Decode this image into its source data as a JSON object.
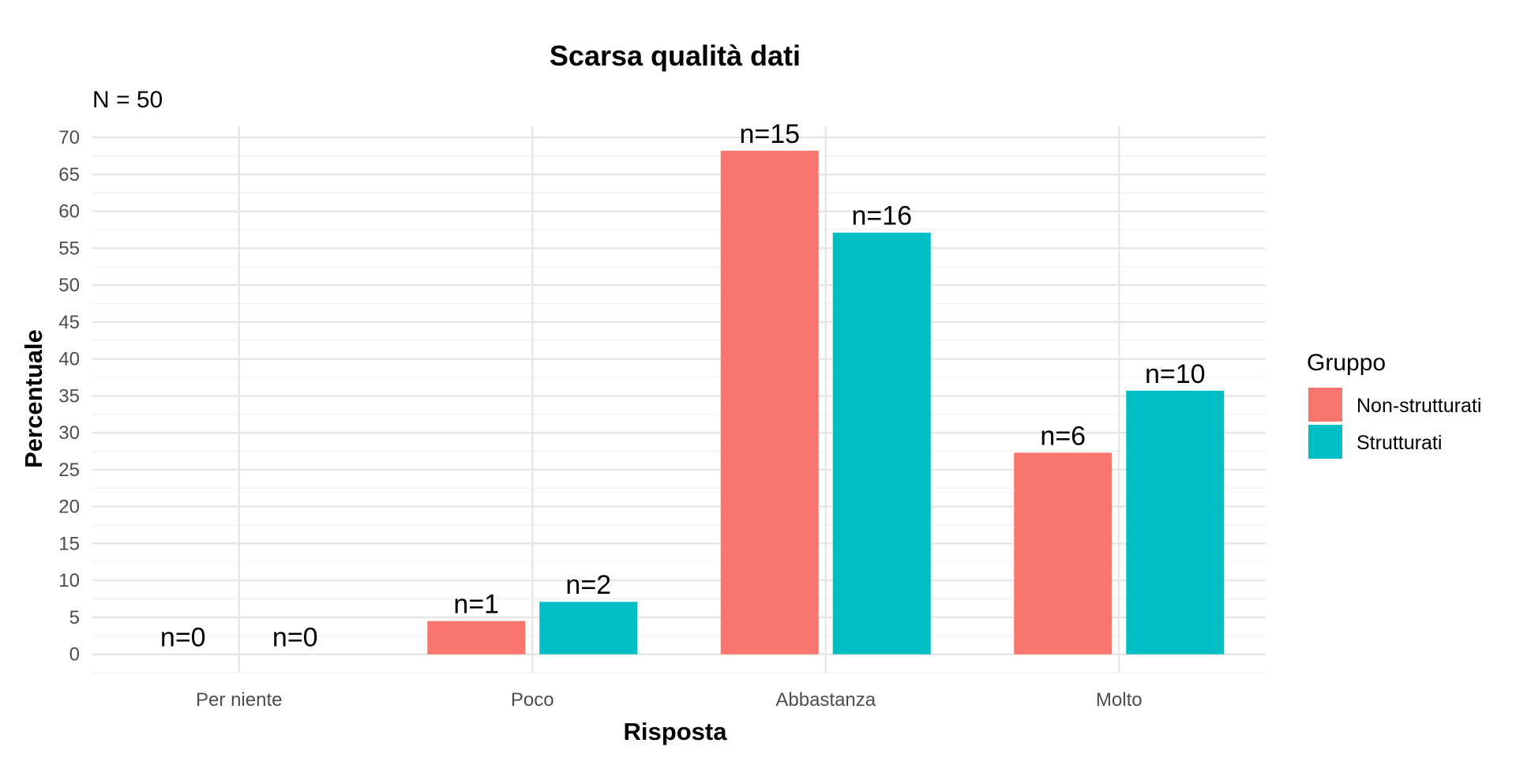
{
  "chart_data": {
    "type": "bar",
    "title": "Scarsa qualità dati",
    "subtitle": "N = 50",
    "xlabel": "Risposta",
    "ylabel": "Percentuale",
    "ylim": [
      -2.5,
      71.5
    ],
    "yticks": [
      0,
      5,
      10,
      15,
      20,
      25,
      30,
      35,
      40,
      45,
      50,
      55,
      60,
      65,
      70
    ],
    "grid": true,
    "legend_position": "right",
    "categories": [
      "Per niente",
      "Poco",
      "Abbastanza",
      "Molto"
    ],
    "series": [
      {
        "name": "Non-strutturati",
        "color": "#F8766D",
        "values": [
          0,
          4.5,
          68.2,
          27.3
        ],
        "labels": [
          "n=0",
          "n=1",
          "n=15",
          "n=6"
        ]
      },
      {
        "name": "Strutturati",
        "color": "#00BFC4",
        "values": [
          0,
          7.1,
          57.1,
          35.7
        ],
        "labels": [
          "n=0",
          "n=2",
          "n=16",
          "n=10"
        ]
      }
    ],
    "legend_title": "Gruppo"
  }
}
